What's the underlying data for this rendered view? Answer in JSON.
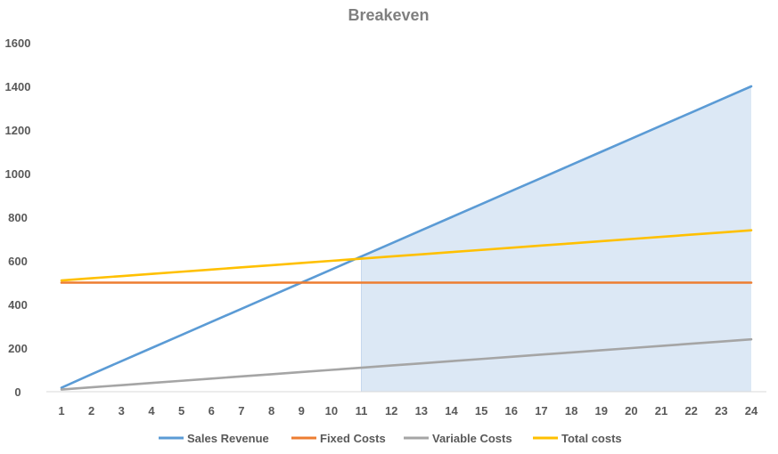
{
  "chart_data": {
    "type": "line",
    "title": "Breakeven",
    "xlabel": "",
    "ylabel": "",
    "categories": [
      "1",
      "2",
      "3",
      "4",
      "5",
      "6",
      "7",
      "8",
      "9",
      "10",
      "11",
      "12",
      "13",
      "14",
      "15",
      "16",
      "17",
      "18",
      "19",
      "20",
      "21",
      "22",
      "23",
      "24"
    ],
    "ylim": [
      0,
      1600
    ],
    "yticks": [
      "0",
      "200",
      "400",
      "600",
      "800",
      "1000",
      "1200",
      "1400",
      "1600"
    ],
    "grid": false,
    "legend_position": "bottom",
    "shaded_region": {
      "from": "11",
      "to": "24",
      "fill": "#dce8f5"
    },
    "series": [
      {
        "name": "Sales Revenue",
        "color": "#5b9bd5",
        "values": [
          18,
          80,
          140,
          200,
          260,
          320,
          380,
          440,
          500,
          560,
          620,
          680,
          740,
          800,
          860,
          920,
          980,
          1040,
          1100,
          1160,
          1220,
          1280,
          1340,
          1400
        ]
      },
      {
        "name": "Fixed Costs",
        "color": "#ed7d31",
        "values": [
          500,
          500,
          500,
          500,
          500,
          500,
          500,
          500,
          500,
          500,
          500,
          500,
          500,
          500,
          500,
          500,
          500,
          500,
          500,
          500,
          500,
          500,
          500,
          500
        ]
      },
      {
        "name": "Variable Costs",
        "color": "#a5a5a5",
        "values": [
          10,
          20,
          30,
          40,
          50,
          60,
          70,
          80,
          90,
          100,
          110,
          120,
          130,
          140,
          150,
          160,
          170,
          180,
          190,
          200,
          210,
          220,
          230,
          240
        ]
      },
      {
        "name": "Total costs",
        "color": "#ffc000",
        "values": [
          510,
          520,
          530,
          540,
          550,
          560,
          570,
          580,
          590,
          600,
          610,
          620,
          630,
          640,
          650,
          660,
          670,
          680,
          690,
          700,
          710,
          720,
          730,
          740
        ]
      }
    ]
  }
}
